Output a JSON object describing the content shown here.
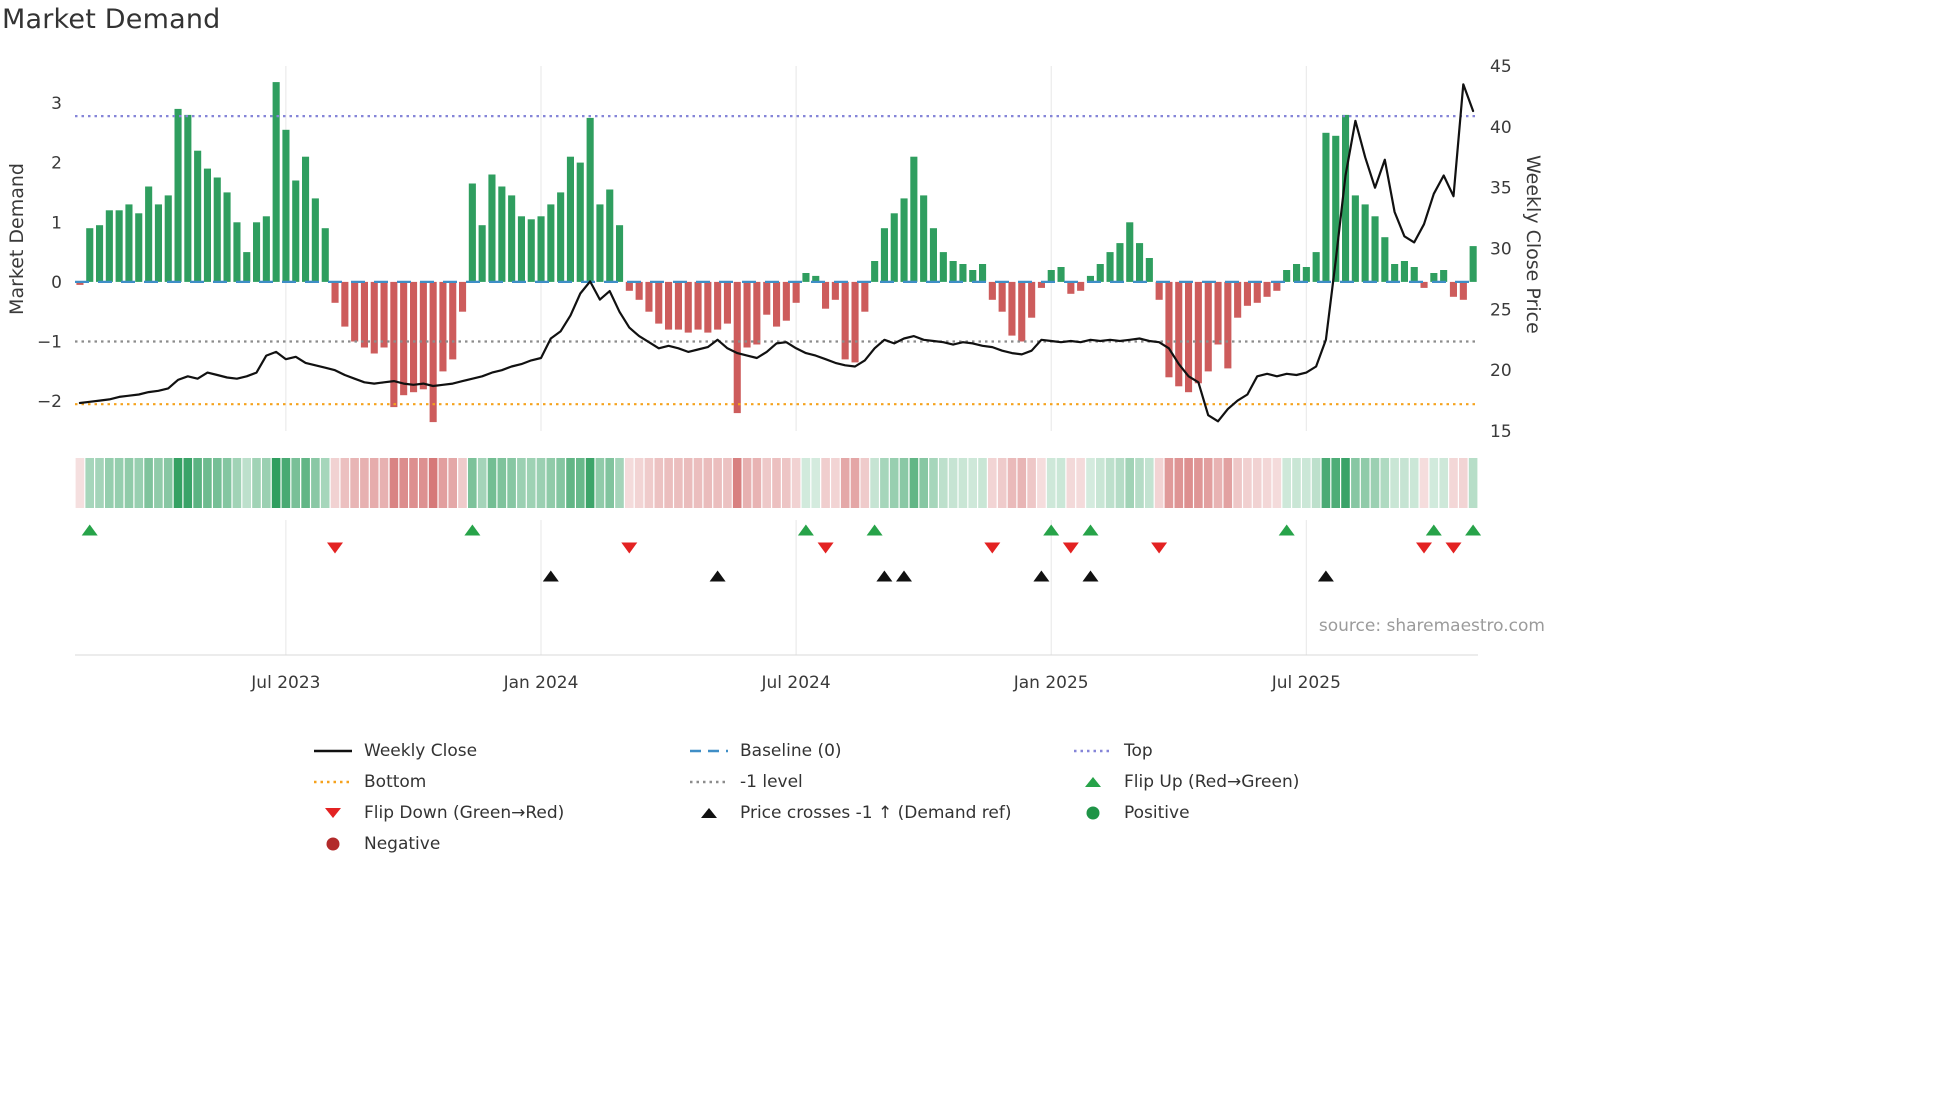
{
  "title": "Market Demand",
  "source": "source: sharemaestro.com",
  "colors": {
    "background": "#ffffff",
    "grid": "#e7e7e7",
    "bottom_rule": "#d9d9d9",
    "positive_bar": "#2f9e5f",
    "negative_bar": "#cd5c5c",
    "price_line": "#111111",
    "top_line": "#8585d8",
    "baseline_line": "#3f8ec6",
    "minus1_line": "#8c8c8c",
    "bottom_line": "#f5a21d",
    "flip_up": "#27a349",
    "flip_down": "#e32222",
    "price_cross": "#111111",
    "positive_dot": "#1f9447",
    "negative_dot": "#b22a2a"
  },
  "chart_data": {
    "type": "bar+line",
    "title": "Market Demand",
    "x_unit": "weekly",
    "x_ticks": [
      {
        "index": 21,
        "label": "Jul 2023"
      },
      {
        "index": 47,
        "label": "Jan 2024"
      },
      {
        "index": 73,
        "label": "Jul 2024"
      },
      {
        "index": 99,
        "label": "Jan 2025"
      },
      {
        "index": 125,
        "label": "Jul 2025"
      }
    ],
    "left_axis": {
      "label": "Market Demand",
      "lim": [
        -2.5,
        3.62
      ],
      "ticks": [
        {
          "v": -2,
          "label": "−2"
        },
        {
          "v": -1,
          "label": "−1"
        },
        {
          "v": 0,
          "label": "0"
        },
        {
          "v": 1,
          "label": "1"
        },
        {
          "v": 2,
          "label": "2"
        },
        {
          "v": 3,
          "label": "3"
        }
      ]
    },
    "right_axis": {
      "label": "Weekly Close Price",
      "lim": [
        15,
        45
      ],
      "ticks": [
        15,
        20,
        25,
        30,
        35,
        40,
        45
      ]
    },
    "series": [
      {
        "name": "Market Demand",
        "type": "bar",
        "axis": "left",
        "values": [
          -0.05,
          0.9,
          0.95,
          1.2,
          1.2,
          1.3,
          1.15,
          1.6,
          1.3,
          1.45,
          2.9,
          2.8,
          2.2,
          1.9,
          1.75,
          1.5,
          1.0,
          0.5,
          1.0,
          1.1,
          3.35,
          2.55,
          1.7,
          2.1,
          1.4,
          0.9,
          -0.35,
          -0.75,
          -1.0,
          -1.1,
          -1.2,
          -1.1,
          -2.1,
          -1.9,
          -1.85,
          -1.8,
          -2.35,
          -1.5,
          -1.3,
          -0.5,
          1.65,
          0.95,
          1.8,
          1.6,
          1.45,
          1.1,
          1.05,
          1.1,
          1.3,
          1.5,
          2.1,
          2.0,
          2.75,
          1.3,
          1.55,
          0.95,
          -0.15,
          -0.3,
          -0.5,
          -0.7,
          -0.8,
          -0.8,
          -0.85,
          -0.8,
          -0.85,
          -0.8,
          -0.7,
          -2.2,
          -1.1,
          -1.05,
          -0.55,
          -0.75,
          -0.65,
          -0.35,
          0.15,
          0.1,
          -0.45,
          -0.3,
          -1.3,
          -1.35,
          -0.5,
          0.35,
          0.9,
          1.15,
          1.4,
          2.1,
          1.45,
          0.9,
          0.5,
          0.35,
          0.3,
          0.2,
          0.3,
          -0.3,
          -0.5,
          -0.9,
          -1.0,
          -0.6,
          -0.1,
          0.2,
          0.25,
          -0.2,
          -0.15,
          0.1,
          0.3,
          0.5,
          0.65,
          1.0,
          0.65,
          0.4,
          -0.3,
          -1.6,
          -1.75,
          -1.85,
          -1.7,
          -1.5,
          -1.05,
          -1.45,
          -0.6,
          -0.4,
          -0.35,
          -0.25,
          -0.15,
          0.2,
          0.3,
          0.25,
          0.5,
          2.5,
          2.45,
          2.8,
          1.45,
          1.3,
          1.1,
          0.75,
          0.3,
          0.35,
          0.25,
          -0.1,
          0.15,
          0.2,
          -0.25,
          -0.3,
          0.6
        ]
      },
      {
        "name": "Weekly Close",
        "type": "line",
        "axis": "right",
        "values": [
          17.3,
          17.4,
          17.5,
          17.6,
          17.8,
          17.9,
          18.0,
          18.2,
          18.3,
          18.5,
          19.2,
          19.5,
          19.3,
          19.8,
          19.6,
          19.4,
          19.3,
          19.5,
          19.8,
          21.2,
          21.5,
          20.9,
          21.1,
          20.6,
          20.4,
          20.2,
          20.0,
          19.6,
          19.3,
          19.0,
          18.9,
          19.0,
          19.1,
          18.9,
          18.8,
          18.9,
          18.7,
          18.8,
          18.9,
          19.1,
          19.3,
          19.5,
          19.8,
          20.0,
          20.3,
          20.5,
          20.8,
          21.0,
          22.6,
          23.2,
          24.5,
          26.3,
          27.3,
          25.8,
          26.5,
          24.8,
          23.5,
          22.8,
          22.3,
          21.8,
          22.0,
          21.8,
          21.5,
          21.7,
          21.9,
          22.5,
          21.8,
          21.4,
          21.2,
          21.0,
          21.5,
          22.2,
          22.3,
          21.8,
          21.4,
          21.2,
          20.9,
          20.6,
          20.4,
          20.3,
          20.8,
          21.8,
          22.5,
          22.2,
          22.6,
          22.8,
          22.5,
          22.4,
          22.3,
          22.1,
          22.3,
          22.2,
          22.0,
          21.9,
          21.6,
          21.4,
          21.3,
          21.6,
          22.5,
          22.4,
          22.3,
          22.4,
          22.3,
          22.5,
          22.4,
          22.5,
          22.4,
          22.5,
          22.6,
          22.4,
          22.3,
          21.8,
          20.5,
          19.5,
          19.0,
          16.3,
          15.8,
          16.8,
          17.5,
          18.0,
          19.5,
          19.7,
          19.5,
          19.7,
          19.6,
          19.8,
          20.3,
          22.5,
          29.0,
          36.0,
          40.5,
          37.5,
          35.0,
          37.3,
          33.0,
          31.0,
          30.5,
          32.0,
          34.5,
          36.0,
          34.3,
          43.5,
          41.3
        ]
      }
    ],
    "reference_lines": [
      {
        "name": "Top",
        "value": 2.78,
        "style": "dotted",
        "color": "#8585d8"
      },
      {
        "name": "Baseline (0)",
        "value": 0,
        "style": "dashed",
        "color": "#3f8ec6"
      },
      {
        "name": "-1 level",
        "value": -1,
        "style": "dotted",
        "color": "#8c8c8c"
      },
      {
        "name": "Bottom",
        "value": -2.05,
        "style": "dotted",
        "color": "#f5a21d"
      }
    ],
    "markers": {
      "flip_up": [
        1,
        40,
        74,
        81,
        99,
        103,
        123,
        138,
        142
      ],
      "flip_down": [
        26,
        56,
        76,
        93,
        101,
        110,
        137,
        140
      ],
      "price_cross": [
        48,
        65,
        82,
        84,
        98,
        103,
        127
      ]
    },
    "heatmap_strip": {
      "description": "weekly demand intensity band, colors derived from Market Demand bar values (green positive, red negative)"
    }
  },
  "legend": {
    "items": [
      {
        "id": "weekly-close",
        "label": "Weekly Close",
        "swatch": "line",
        "color": "#111111"
      },
      {
        "id": "baseline",
        "label": "Baseline (0)",
        "swatch": "dashed",
        "color": "#3f8ec6"
      },
      {
        "id": "top",
        "label": "Top",
        "swatch": "dotted",
        "color": "#8585d8"
      },
      {
        "id": "bottom",
        "label": "Bottom",
        "swatch": "dotted",
        "color": "#f5a21d"
      },
      {
        "id": "minus1-level",
        "label": "-1 level",
        "swatch": "dotted",
        "color": "#8c8c8c"
      },
      {
        "id": "flip-up",
        "label": "Flip Up (Red→Green)",
        "swatch": "tri-up",
        "color": "#27a349"
      },
      {
        "id": "flip-down",
        "label": "Flip Down (Green→Red)",
        "swatch": "tri-down",
        "color": "#e32222"
      },
      {
        "id": "price-cross",
        "label": "Price crosses -1 ↑ (Demand ref)",
        "swatch": "tri-up",
        "color": "#111111"
      },
      {
        "id": "positive",
        "label": "Positive",
        "swatch": "dot",
        "color": "#1f9447"
      },
      {
        "id": "negative",
        "label": "Negative",
        "swatch": "dot",
        "color": "#b22a2a"
      }
    ]
  }
}
